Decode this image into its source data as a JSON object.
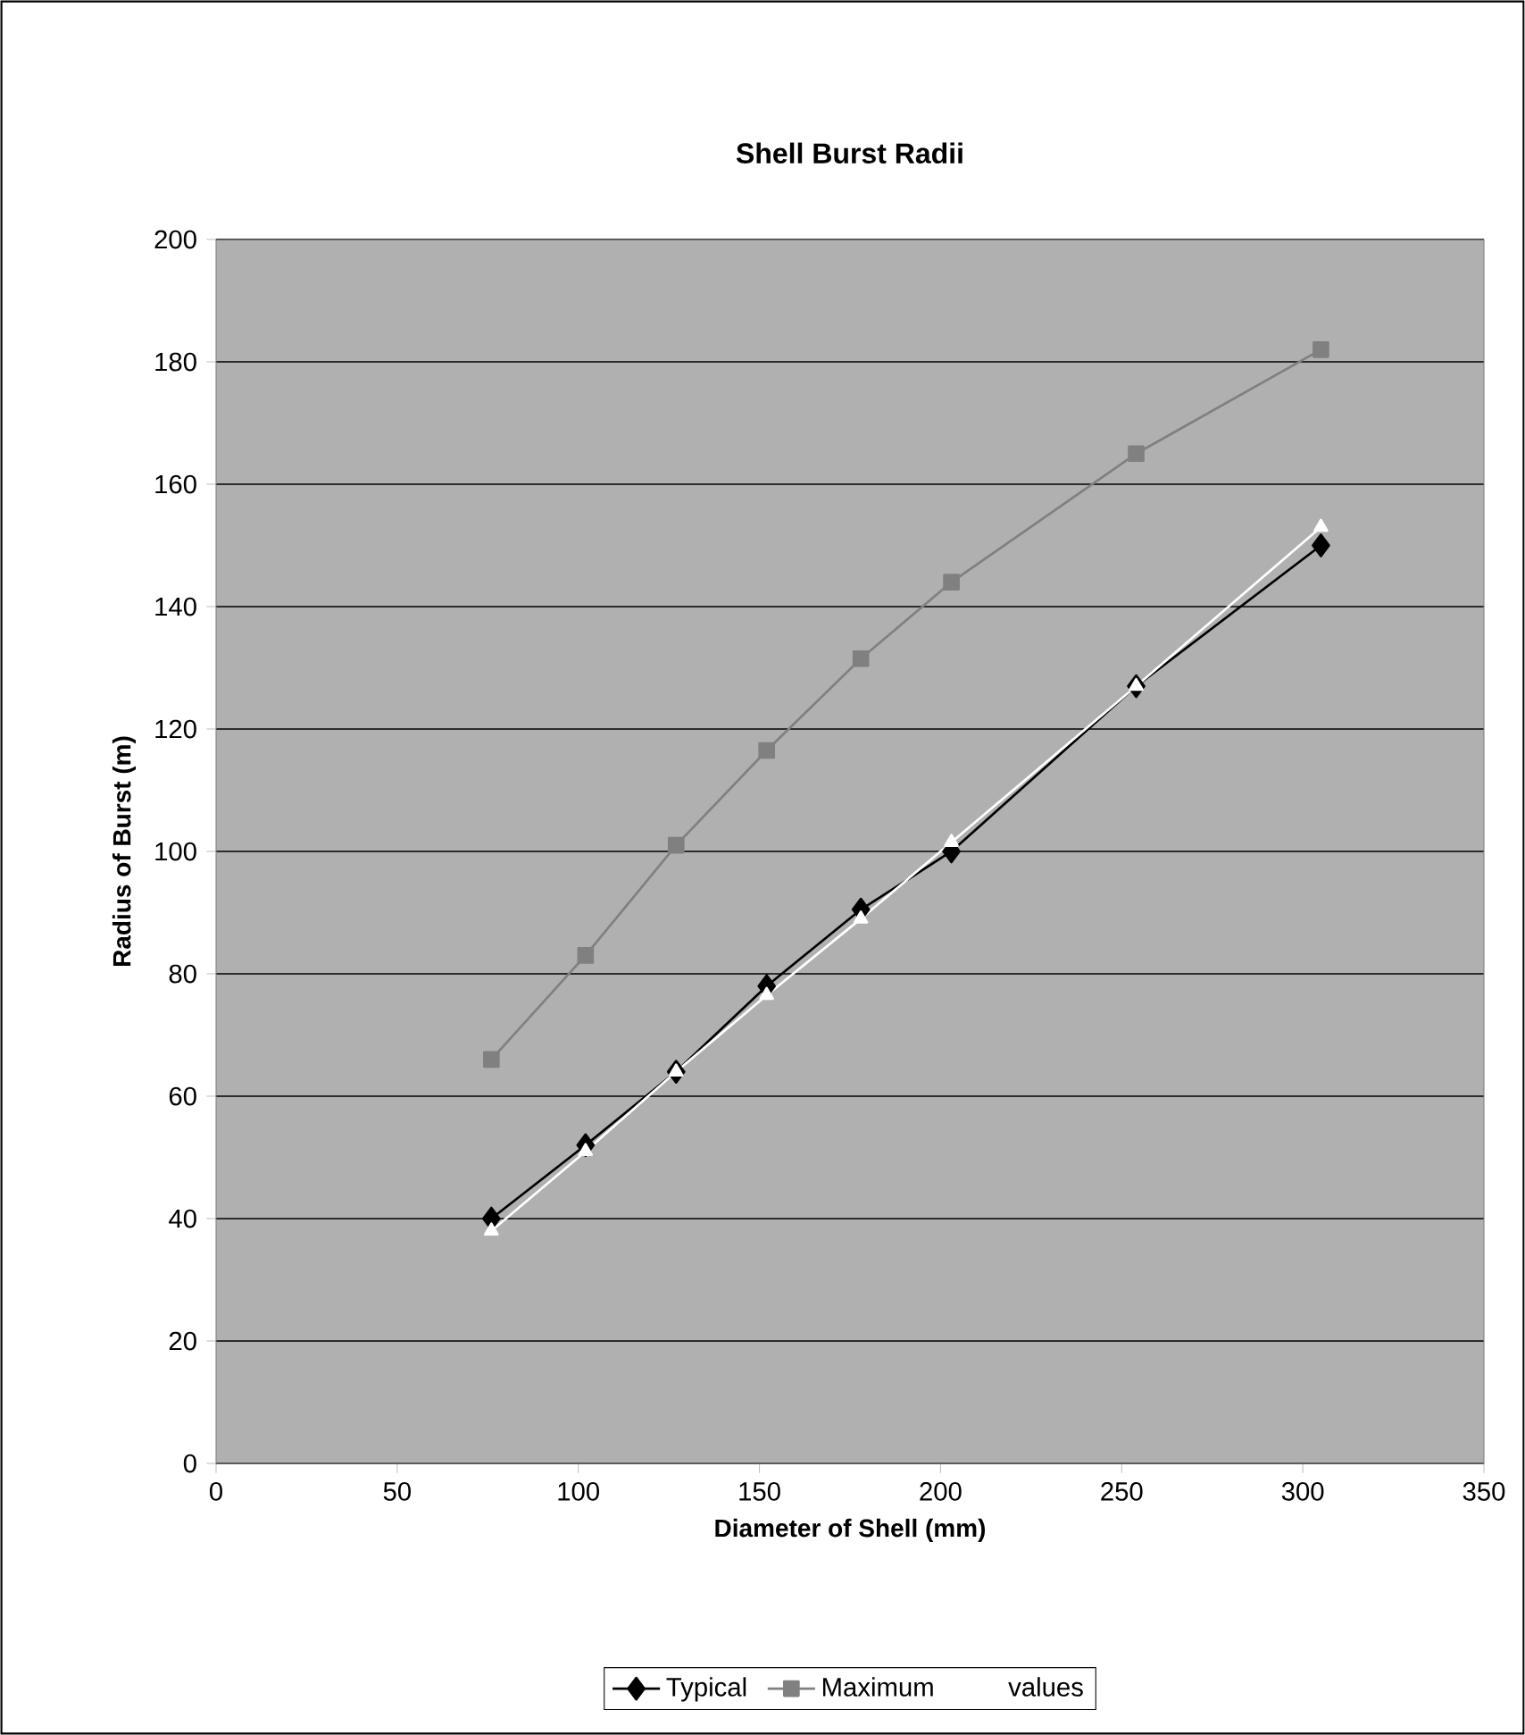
{
  "chart_data": {
    "type": "line",
    "title": "Shell Burst Radii",
    "xlabel": "Diameter of Shell (mm)",
    "ylabel": "Radius of Burst (m)",
    "x": [
      76,
      102,
      127,
      152,
      178,
      203,
      254,
      305
    ],
    "series": [
      {
        "name": "Typical",
        "color": "#000000",
        "marker": "diamond",
        "values": [
          40,
          52,
          64,
          78,
          90.5,
          100,
          127,
          150
        ]
      },
      {
        "name": "Maximum",
        "color": "#808080",
        "marker": "square",
        "values": [
          66,
          83,
          101,
          116.5,
          131.5,
          144,
          165,
          182
        ]
      },
      {
        "name": "values",
        "color": "#ffffff",
        "marker": "triangle",
        "values": [
          38,
          51,
          64,
          76.5,
          89,
          101.5,
          127,
          153
        ]
      }
    ],
    "xlim": [
      0,
      350
    ],
    "xticks": [
      0,
      50,
      100,
      150,
      200,
      250,
      300,
      350
    ],
    "ylim": [
      0,
      200
    ],
    "yticks": [
      0,
      20,
      40,
      60,
      80,
      100,
      120,
      140,
      160,
      180,
      200
    ],
    "grid": "y",
    "legend": "bottom",
    "line_style": "solid"
  }
}
